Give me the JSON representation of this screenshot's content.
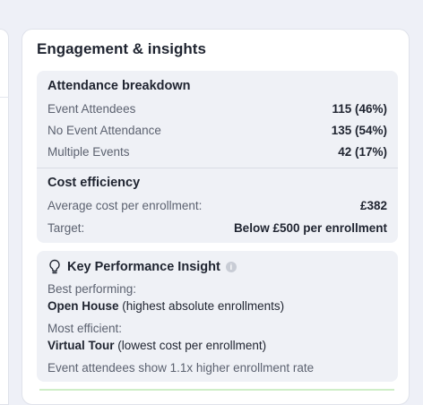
{
  "card": {
    "title": "Engagement & insights"
  },
  "attendance": {
    "title": "Attendance breakdown",
    "rows": [
      {
        "label": "Event Attendees",
        "value": "115 (46%)"
      },
      {
        "label": "No Event Attendance",
        "value": "135 (54%)"
      },
      {
        "label": "Multiple Events",
        "value": "42 (17%)"
      }
    ]
  },
  "cost": {
    "title": "Cost efficiency",
    "rows": [
      {
        "label": "Average cost per enrollment:",
        "value": "£382"
      },
      {
        "label": "Target:",
        "value": "Below £500 per enrollment"
      }
    ]
  },
  "kpi": {
    "title": "Key Performance Insight",
    "icon": "lightbulb-icon",
    "info_icon": "info-icon",
    "best_label": "Best performing:",
    "best_name": "Open House",
    "best_note": "(highest absolute enrollments)",
    "efficient_label": "Most efficient:",
    "efficient_name": "Virtual Tour",
    "efficient_note": "(lowest cost per enrollment)",
    "footnote": "Event attendees show 1.1x higher enrollment rate"
  },
  "colors": {
    "background": "#eef0f7",
    "card": "#ffffff",
    "section": "#eff1f6",
    "muted_text": "#5c6270",
    "strong_text": "#1f2430",
    "success_strip": "#cfeec8"
  }
}
